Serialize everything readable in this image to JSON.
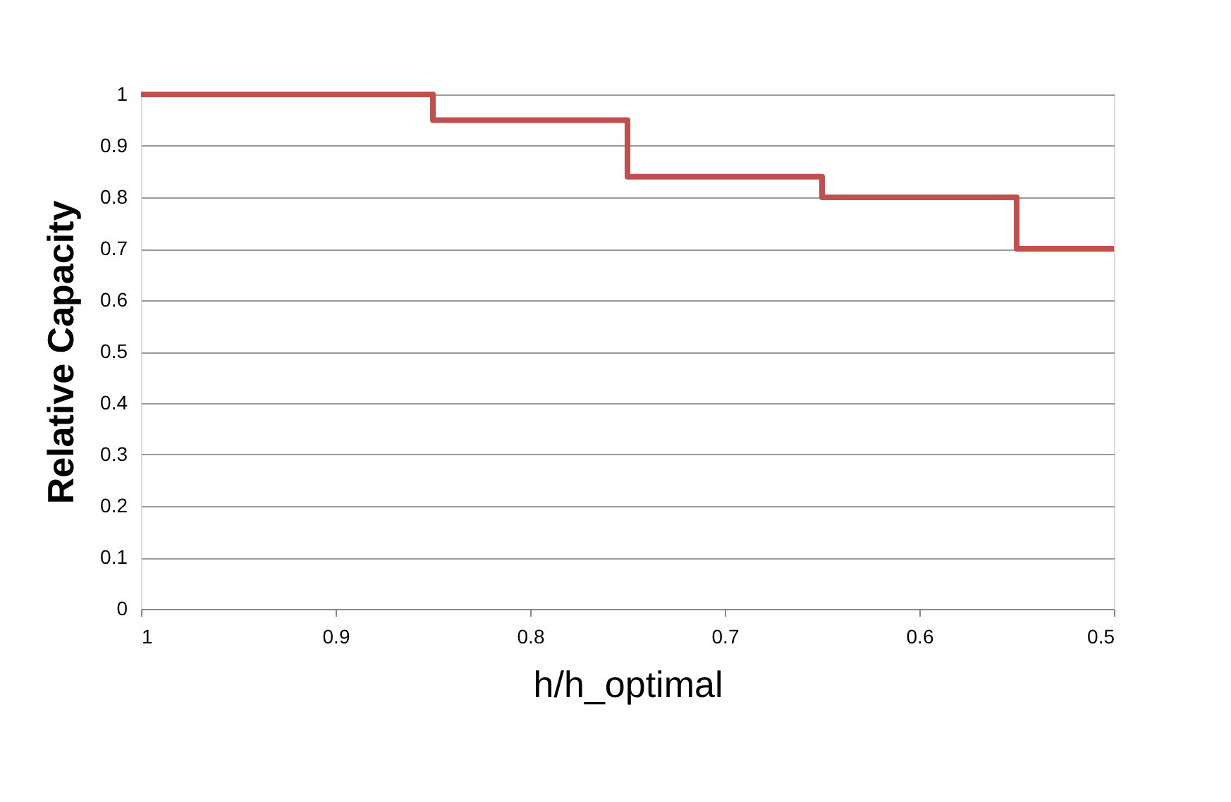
{
  "chart_data": {
    "type": "step",
    "xlabel": "h/h_optimal",
    "ylabel": "Relative Capacity",
    "x": [
      1,
      0.85,
      0.75,
      0.65,
      0.55,
      0.5
    ],
    "series": [
      {
        "color": "#c0504d",
        "values": [
          1,
          0.95,
          0.84,
          0.8,
          0.7,
          0.7
        ]
      }
    ],
    "xlim": [
      1,
      0.5
    ],
    "xticks": [
      1,
      0.9,
      0.8,
      0.7,
      0.6,
      0.5
    ],
    "ylim": [
      0,
      1
    ],
    "yticks": [
      0,
      0.1,
      0.2,
      0.3,
      0.4,
      0.5,
      0.6,
      0.7,
      0.8,
      0.9,
      1
    ],
    "grid": "y"
  }
}
